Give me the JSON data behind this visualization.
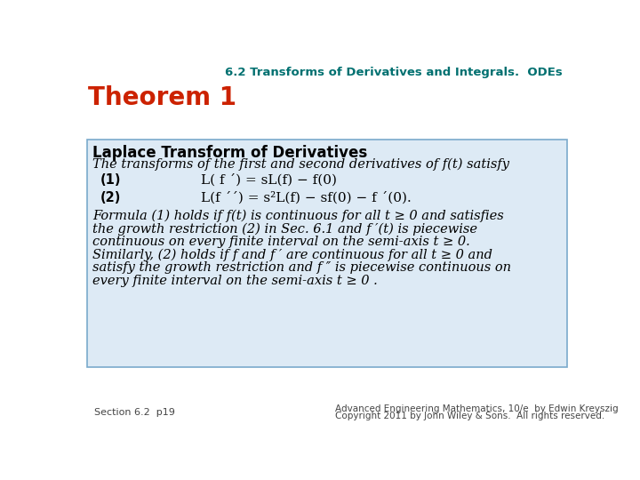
{
  "bg_color": "#ffffff",
  "header_text": "6.2 Transforms of Derivatives and Integrals.  ODEs",
  "header_color": "#007070",
  "theorem_title": "Theorem 1",
  "theorem_title_color": "#cc2200",
  "box_bg_color": "#ddeaf5",
  "box_border_color": "#7aaacc",
  "box_title": "Laplace Transform of Derivatives",
  "box_title_color": "#000000",
  "line1": "The transforms of the first and second derivatives of f(t) satisfy",
  "label1": "(1)",
  "eq1": "L( f ´) = sL(f) − f(0)",
  "label2": "(2)",
  "eq2": "L(f ´´) = s²L(f) − sf(0) − f ´(0).",
  "para_lines": [
    "Formula (1) holds if f(t) is continuous for all t ≥ 0 and satisfies",
    "the growth restriction (2) in Sec. 6.1 and f ′(t) is piecewise",
    "continuous on every finite interval on the semi-axis t ≥ 0.",
    "Similarly, (2) holds if f and f ′ are continuous for all t ≥ 0 and",
    "satisfy the growth restriction and f ″ is piecewise continuous on",
    "every finite interval on the semi-axis t ≥ 0 ."
  ],
  "footer_left": "Section 6.2  p19",
  "footer_right_line1": "Advanced Engineering Mathematics, 10/e  by Edwin Kreyszig",
  "footer_right_line2": "Copyright 2011 by John Wiley & Sons.  All rights reserved.",
  "footer_color": "#444444"
}
